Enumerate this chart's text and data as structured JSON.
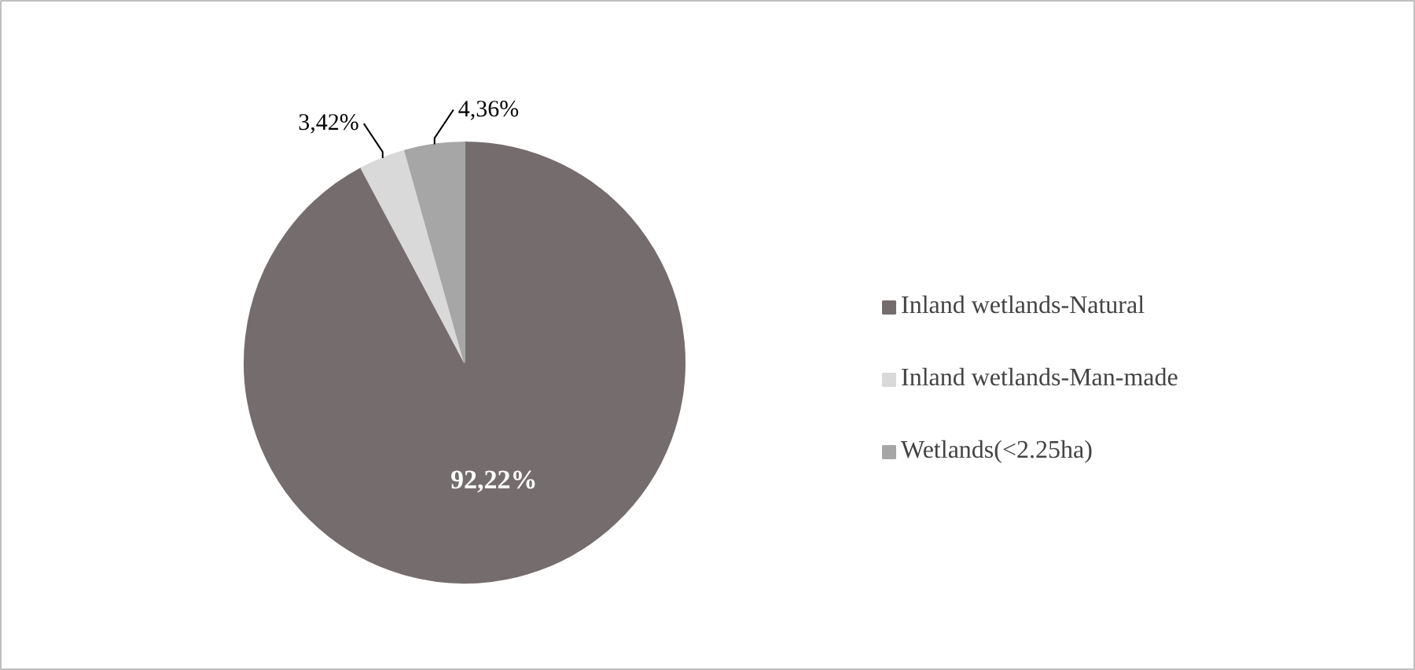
{
  "chart_data": {
    "type": "pie",
    "categories": [
      "Inland wetlands-Natural",
      "Inland wetlands-Man-made",
      "Wetlands(<2.25ha)"
    ],
    "values": [
      92.22,
      3.42,
      4.36
    ],
    "colors": [
      "#756d6d",
      "#d9d9d9",
      "#a6a6a6"
    ],
    "value_labels": [
      "92,22%",
      "3,42%",
      "4,36%"
    ],
    "legend": "right"
  }
}
